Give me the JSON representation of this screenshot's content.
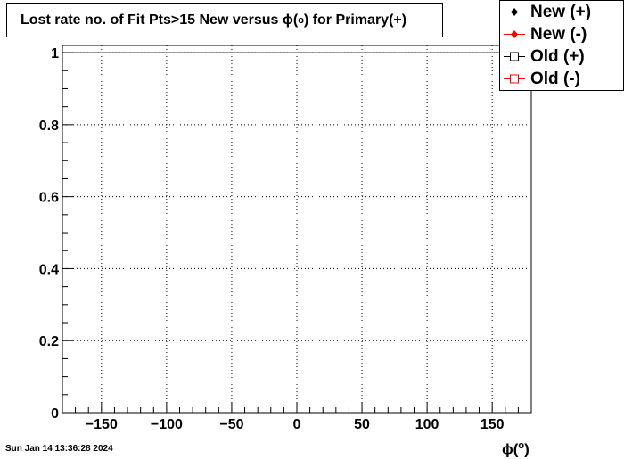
{
  "chart_data": {
    "type": "line",
    "title": "Lost rate no. of Fit Pts>15 New versus ϕ(°) for Primary(+)",
    "title_prefix": "Lost rate no. of Fit Pts>15 New versus ϕ(",
    "title_degree": "o",
    "title_suffix": ") for Primary(+)",
    "xlabel": "ϕ(°)",
    "xlabel_symbol": "ϕ(",
    "xlabel_degree": "o",
    "xlabel_close": ")",
    "ylabel": "",
    "xlim": [
      -180,
      180
    ],
    "ylim": [
      0,
      1.02
    ],
    "xticks": [
      -150,
      -100,
      -50,
      0,
      50,
      100,
      150
    ],
    "xtick_labels": [
      "−150",
      "−100",
      "−50",
      "0",
      "50",
      "100",
      "150"
    ],
    "yticks": [
      0,
      0.2,
      0.4,
      0.6,
      0.8,
      1
    ],
    "ytick_labels": [
      "0",
      "0.2",
      "0.4",
      "0.6",
      "0.8",
      "1"
    ],
    "grid": true,
    "legend_placement": "top-right",
    "series": [
      {
        "name": "New (+)",
        "color": "#000000",
        "marker": "filled-diamond",
        "x": [
          -180,
          180
        ],
        "values": [
          1,
          1
        ]
      },
      {
        "name": "New (-)",
        "color": "#ff0000",
        "marker": "filled-diamond",
        "x": [],
        "values": []
      },
      {
        "name": "Old (+)",
        "color": "#000000",
        "marker": "open-square",
        "x": [],
        "values": []
      },
      {
        "name": "Old (-)",
        "color": "#ff0000",
        "marker": "open-square",
        "x": [],
        "values": []
      }
    ]
  },
  "legend": {
    "entries": [
      {
        "label": "New (+)",
        "color": "#000000",
        "icon": "filled-diamond-icon"
      },
      {
        "label": "New (-)",
        "color": "#ff0000",
        "icon": "filled-diamond-icon"
      },
      {
        "label": "Old (+)",
        "color": "#000000",
        "icon": "open-square-icon"
      },
      {
        "label": "Old (-)",
        "color": "#ff0000",
        "icon": "open-square-icon"
      }
    ]
  },
  "footer": {
    "date": "Sun Jan 14 13:36:28 2024"
  }
}
